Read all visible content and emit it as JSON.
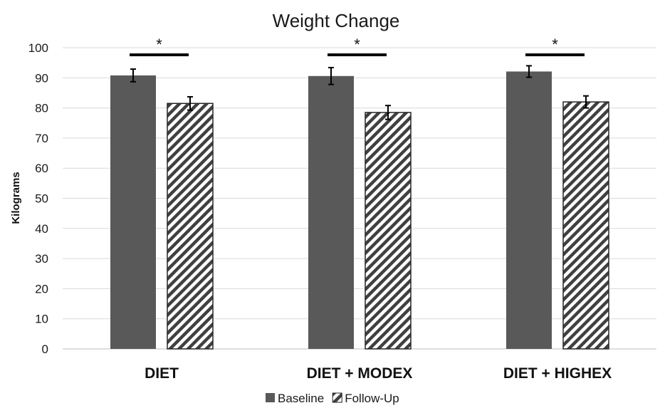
{
  "chart_data": {
    "type": "bar",
    "title": "Weight Change",
    "xlabel": "",
    "ylabel": "Kilograms",
    "categories": [
      "DIET",
      "DIET + MODEX",
      "DIET + HIGHEX"
    ],
    "ylim": [
      0,
      100
    ],
    "yticks": [
      0,
      10,
      20,
      30,
      40,
      50,
      60,
      70,
      80,
      90,
      100
    ],
    "grid": true,
    "legend_position": "bottom",
    "series": [
      {
        "name": "Baseline",
        "values": [
          90.8,
          90.6,
          92.1
        ],
        "errors": [
          2.1,
          2.8,
          1.9
        ],
        "color": "#595959",
        "pattern": "solid"
      },
      {
        "name": "Follow-Up",
        "values": [
          81.5,
          78.5,
          82.0
        ],
        "errors": [
          2.2,
          2.3,
          2.0
        ],
        "color": "#404040",
        "pattern": "diagonal-hatch"
      }
    ],
    "annotations": [
      {
        "category": "DIET",
        "text": "*"
      },
      {
        "category": "DIET + MODEX",
        "text": "*"
      },
      {
        "category": "DIET + HIGHEX",
        "text": "*"
      }
    ]
  }
}
